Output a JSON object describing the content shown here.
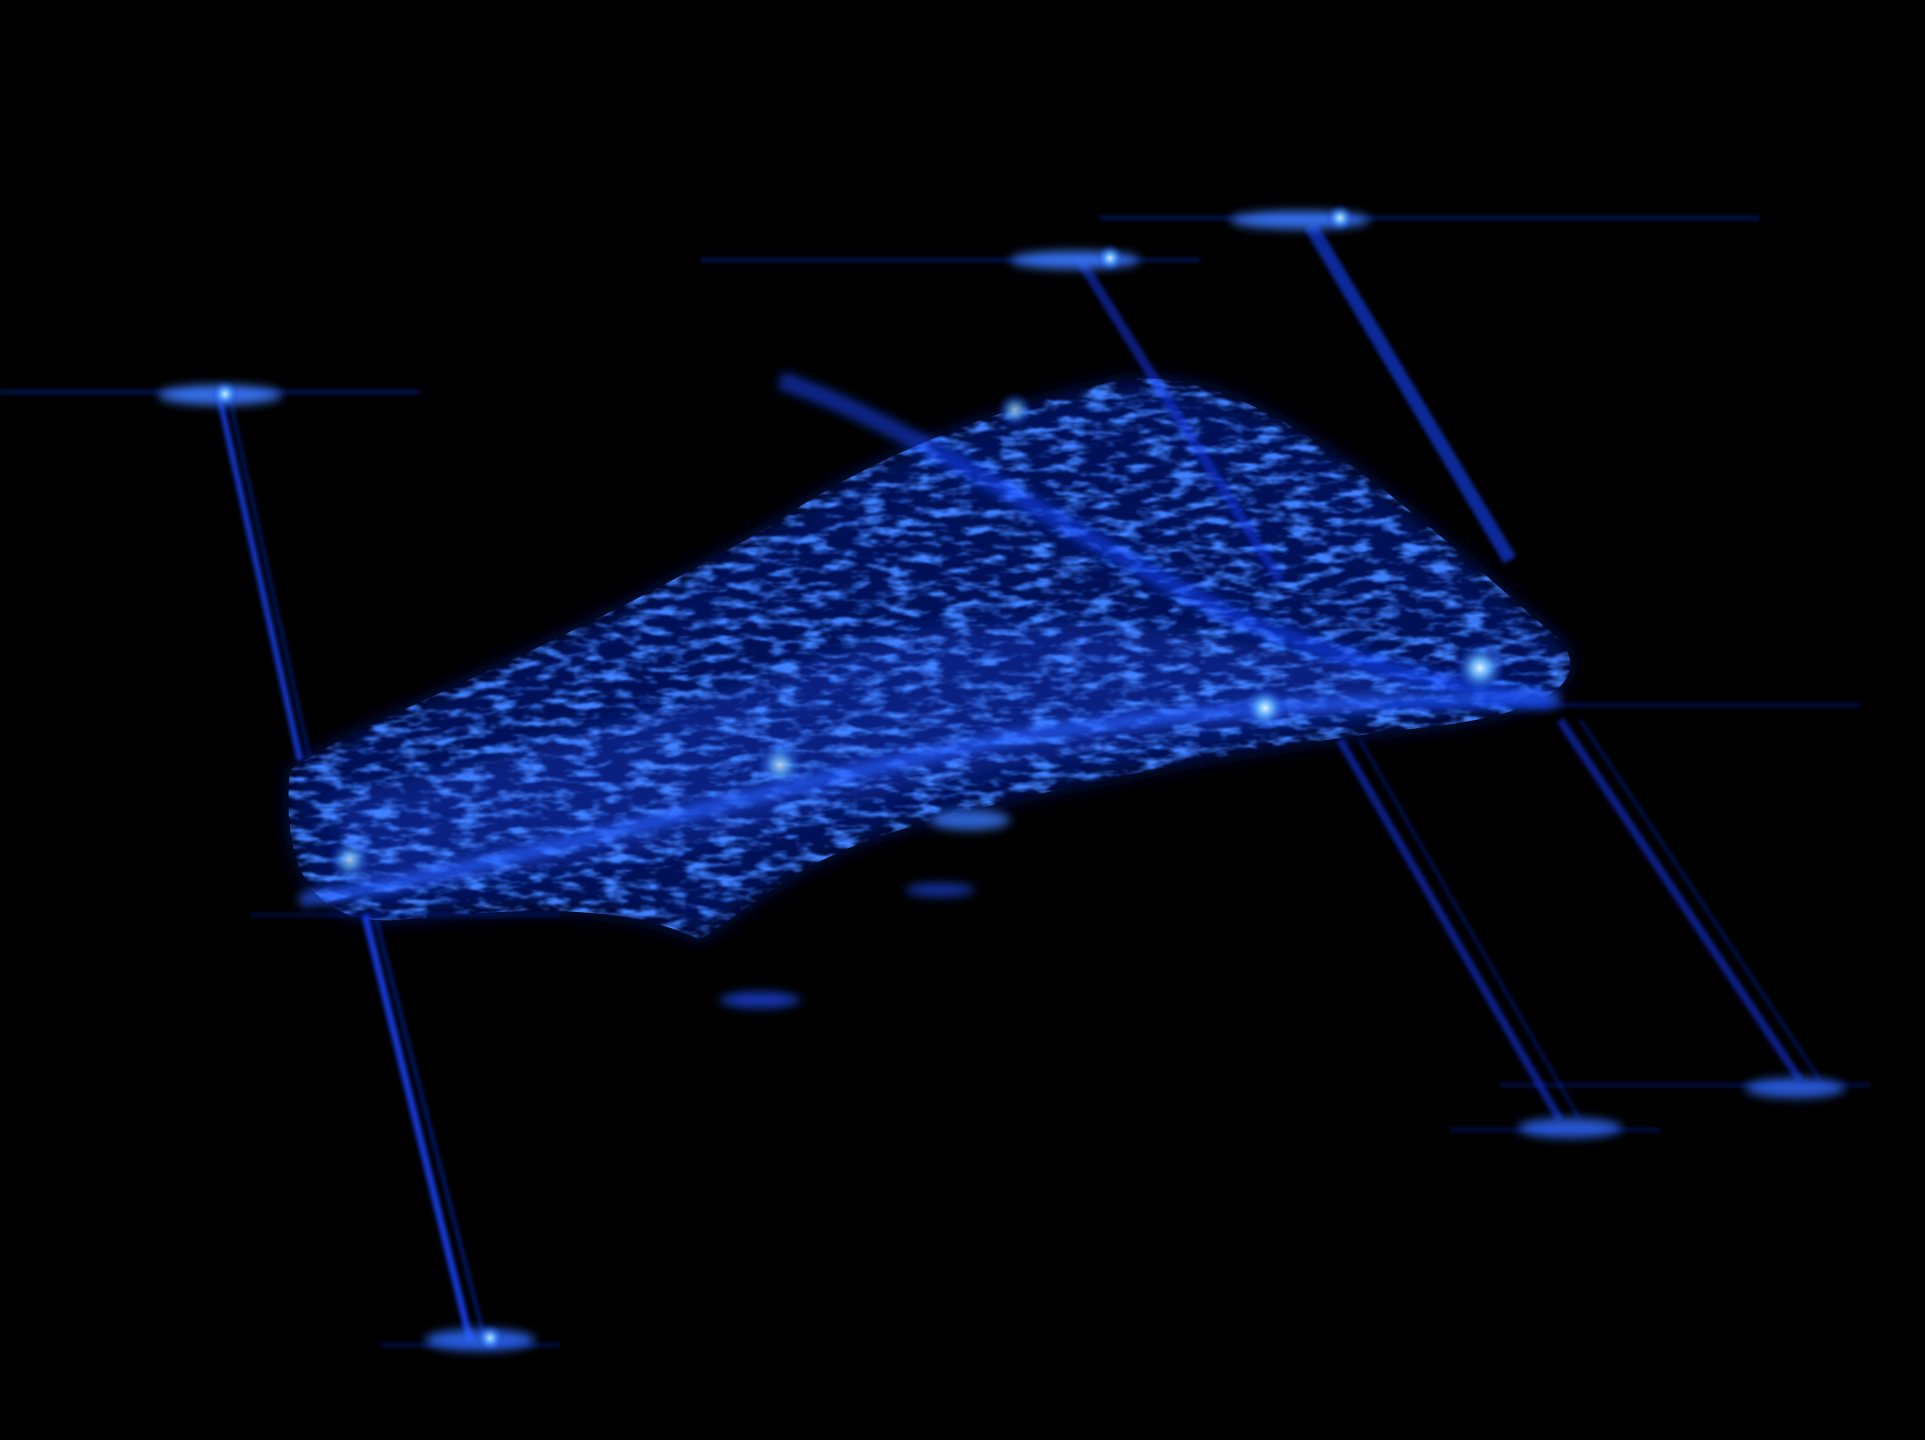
{
  "image": {
    "background_color": "#000000",
    "signal_colors": [
      "#000814",
      "#001a66",
      "#0a2fd0",
      "#2f6bff",
      "#8fd0ff"
    ],
    "subject": "blue-glow-table-scan"
  }
}
